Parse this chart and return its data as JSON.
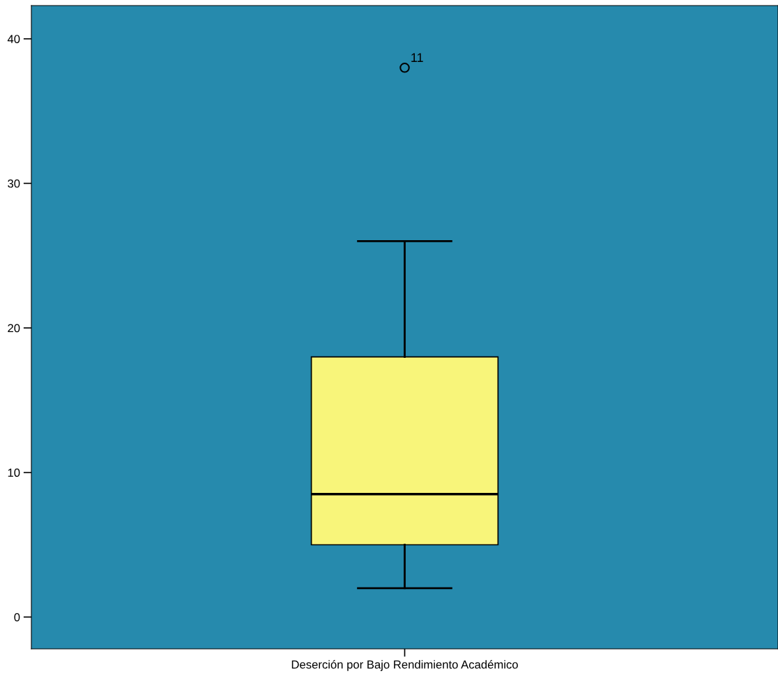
{
  "chart_data": {
    "type": "box",
    "categories": [
      "Deserción por Bajo Rendimiento Académico"
    ],
    "boxes": [
      {
        "low": 2,
        "q1": 5,
        "median": 8.5,
        "q3": 18,
        "high": 26,
        "outliers": [
          38
        ]
      }
    ],
    "colors": [
      "#f8f57a"
    ],
    "ylim": [
      -2.2,
      42.3
    ],
    "yticks": [
      0,
      10,
      20,
      30,
      40
    ],
    "grid": false,
    "annotations": [
      "11"
    ]
  }
}
